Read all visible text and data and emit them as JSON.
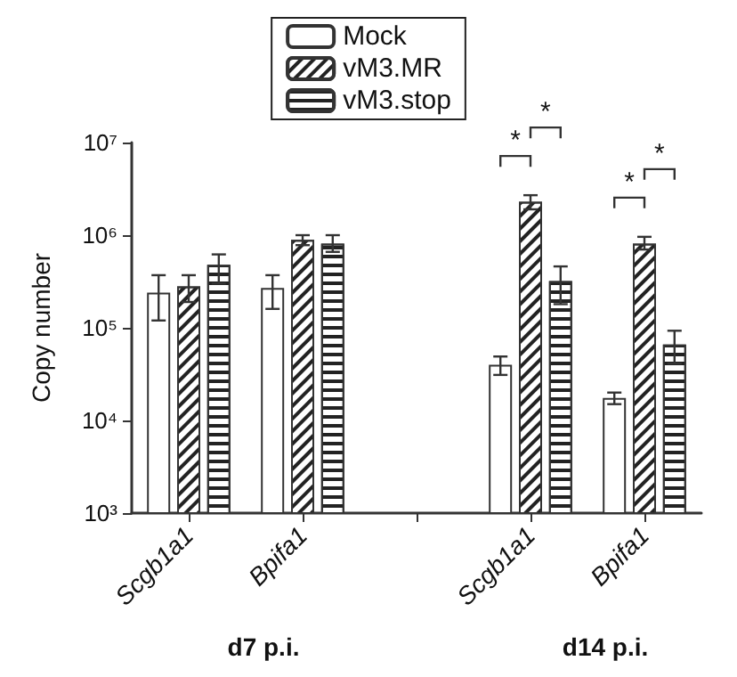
{
  "chart_data": {
    "type": "bar",
    "ylabel": "Copy number",
    "categories": [
      "Scgb1a1",
      "Bpifa1",
      null,
      "Scgb1a1",
      "Bpifa1"
    ],
    "series": [
      {
        "name": "Mock",
        "color": "#ffffff",
        "values": [
          240000,
          270000,
          null,
          40000,
          17500
        ],
        "errors": [
          [
            120000,
            370000
          ],
          [
            160000,
            370000
          ],
          null,
          [
            31000,
            49000
          ],
          [
            15000,
            20000
          ]
        ]
      },
      {
        "name": "vM3.MR",
        "color": "#ffffff",
        "values": [
          280000,
          890000,
          null,
          2300000,
          810000
        ],
        "errors": [
          [
            190000,
            370000
          ],
          [
            780000,
            1000000
          ],
          null,
          [
            1900000,
            2700000
          ],
          [
            700000,
            960000
          ]
        ]
      },
      {
        "name": "vM3.stop",
        "color": "#ffffff",
        "values": [
          480000,
          810000,
          null,
          320000,
          66000
        ],
        "errors": [
          [
            300000,
            620000
          ],
          [
            660000,
            1000000
          ],
          null,
          [
            180000,
            460000
          ],
          [
            41000,
            93000
          ]
        ]
      }
    ],
    "log": true,
    "ylim": [
      1000,
      10000000
    ],
    "yticks": [
      {
        "value": 1000,
        "label": "10³"
      },
      {
        "value": 10000,
        "label": "10⁴"
      },
      {
        "value": 100000,
        "label": "10⁵"
      },
      {
        "value": 1000000,
        "label": "10⁶"
      },
      {
        "value": 10000000,
        "label": "10⁷"
      }
    ],
    "legend": "top",
    "grid": false,
    "annotations": [
      "*",
      "*",
      "*",
      "*",
      "d7 p.i.",
      "d14 p.i."
    ]
  }
}
